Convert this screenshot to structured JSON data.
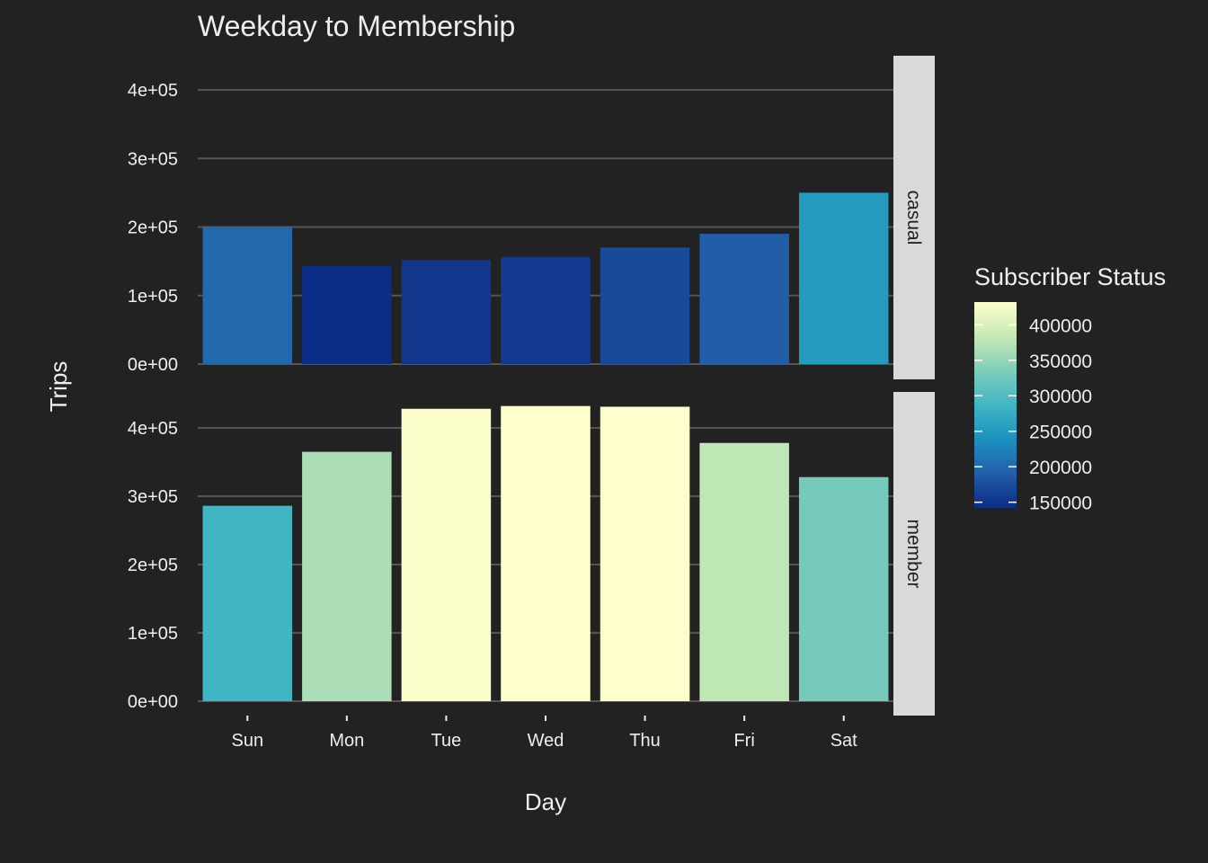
{
  "chart_data": {
    "type": "bar",
    "title": "Weekday to Membership",
    "xlabel": "Day",
    "ylabel": "Trips",
    "categories": [
      "Sun",
      "Mon",
      "Tue",
      "Wed",
      "Thu",
      "Fri",
      "Sat"
    ],
    "ylim": [
      0,
      450000
    ],
    "yticks": [
      0,
      100000,
      200000,
      300000,
      400000
    ],
    "ytick_labels": [
      "0e+00",
      "1e+05",
      "2e+05",
      "3e+05",
      "4e+05"
    ],
    "facets": [
      {
        "label": "casual",
        "values": [
          200000,
          143000,
          152000,
          156000,
          170000,
          190000,
          250000
        ]
      },
      {
        "label": "member",
        "values": [
          286000,
          365000,
          428000,
          432000,
          431000,
          378000,
          328000
        ]
      }
    ],
    "legend": {
      "title": "Subscriber Status",
      "position": "right",
      "min": 142000,
      "max": 432000,
      "ticks": [
        150000,
        200000,
        250000,
        300000,
        350000,
        400000
      ],
      "colors": [
        "#0c2c84",
        "#225ea8",
        "#1d91c0",
        "#41b6c4",
        "#7fcdbb",
        "#c7e9b4",
        "#ffffcc"
      ]
    },
    "grid": true,
    "background": "#222222",
    "strip_color": "#d9d9d9"
  }
}
